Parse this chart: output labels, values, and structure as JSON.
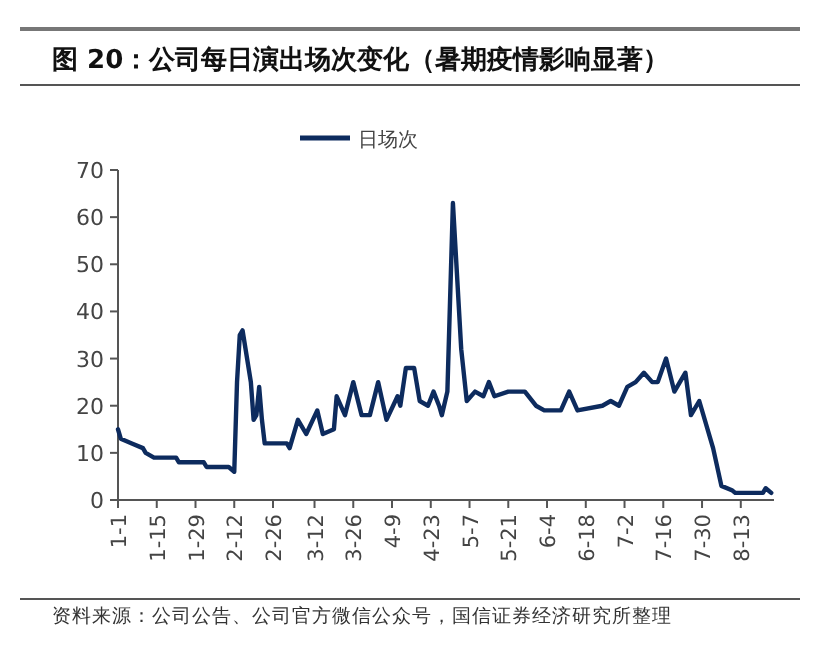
{
  "chart_data": {
    "type": "line",
    "title": "图 20：公司每日演出场次变化（暑期疫情影响显著）",
    "annotations": [
      "资料来源：公司公告、公司官方微信公众号，国信证券经济研究所整理"
    ],
    "x": [
      "--01-01",
      "--01-02",
      "--01-06",
      "--01-10",
      "--01-11",
      "--01-14",
      "--01-22",
      "--01-23",
      "--02-01",
      "--02-02",
      "--02-10",
      "--02-12",
      "--02-13",
      "--02-14",
      "--02-15",
      "--02-18",
      "--02-19",
      "--02-20",
      "--02-21",
      "--02-22",
      "--02-23",
      "--03-02",
      "--03-03",
      "--03-06",
      "--03-09",
      "--03-13",
      "--03-15",
      "--03-19",
      "--03-20",
      "--03-23",
      "--03-26",
      "--03-29",
      "--04-01",
      "--04-04",
      "--04-07",
      "--04-11",
      "--04-12",
      "--04-14",
      "--04-17",
      "--04-19",
      "--04-22",
      "--04-24",
      "--04-26",
      "--04-27",
      "--04-29",
      "--05-01",
      "--05-04",
      "--05-06",
      "--05-09",
      "--05-12",
      "--05-14",
      "--05-16",
      "--05-21",
      "--05-27",
      "--05-31",
      "--06-03",
      "--06-09",
      "--06-12",
      "--06-15",
      "--06-24",
      "--06-27",
      "--06-30",
      "--07-03",
      "--07-06",
      "--07-09",
      "--07-12",
      "--07-14",
      "--07-17",
      "--07-20",
      "--07-24",
      "--07-26",
      "--07-29",
      "--08-03",
      "--08-06",
      "--08-10",
      "--08-11",
      "--08-21",
      "--08-22",
      "--08-24"
    ],
    "series": [
      {
        "name": "日场次",
        "color": "#0d2b5e",
        "values": [
          15,
          13,
          12,
          11,
          10,
          9,
          9,
          8,
          8,
          7,
          7,
          6,
          25,
          35,
          36,
          25,
          17,
          18,
          24,
          17,
          12,
          12,
          11,
          17,
          14,
          19,
          14,
          15,
          22,
          18,
          25,
          18,
          18,
          25,
          17,
          22,
          20,
          28,
          28,
          21,
          20,
          23,
          20,
          18,
          23,
          63,
          32,
          21,
          23,
          22,
          25,
          22,
          23,
          23,
          20,
          19,
          19,
          23,
          19,
          20,
          21,
          20,
          24,
          25,
          27,
          25,
          25,
          30,
          23,
          27,
          18,
          21,
          11,
          3,
          2,
          1.5,
          1.5,
          2.5,
          1.5
        ]
      }
    ],
    "xlim": [
      "--01-01",
      "--08-25"
    ],
    "xticks": [
      {
        "value": "--01-01",
        "label": "1-1"
      },
      {
        "value": "--01-15",
        "label": "1-15"
      },
      {
        "value": "--01-29",
        "label": "1-29"
      },
      {
        "value": "--02-12",
        "label": "2-12"
      },
      {
        "value": "--02-26",
        "label": "2-26"
      },
      {
        "value": "--03-12",
        "label": "3-12"
      },
      {
        "value": "--03-26",
        "label": "3-26"
      },
      {
        "value": "--04-09",
        "label": "4-9"
      },
      {
        "value": "--04-23",
        "label": "4-23"
      },
      {
        "value": "--05-07",
        "label": "5-7"
      },
      {
        "value": "--05-21",
        "label": "5-21"
      },
      {
        "value": "--06-04",
        "label": "6-4"
      },
      {
        "value": "--06-18",
        "label": "6-18"
      },
      {
        "value": "--07-02",
        "label": "7-2"
      },
      {
        "value": "--07-16",
        "label": "7-16"
      },
      {
        "value": "--07-30",
        "label": "7-30"
      },
      {
        "value": "--08-13",
        "label": "8-13"
      }
    ],
    "ylim": [
      0,
      70
    ],
    "yticks": [
      0,
      10,
      20,
      30,
      40,
      50,
      60,
      70
    ],
    "legend": "top",
    "line_style": "solid",
    "marker": "none"
  }
}
